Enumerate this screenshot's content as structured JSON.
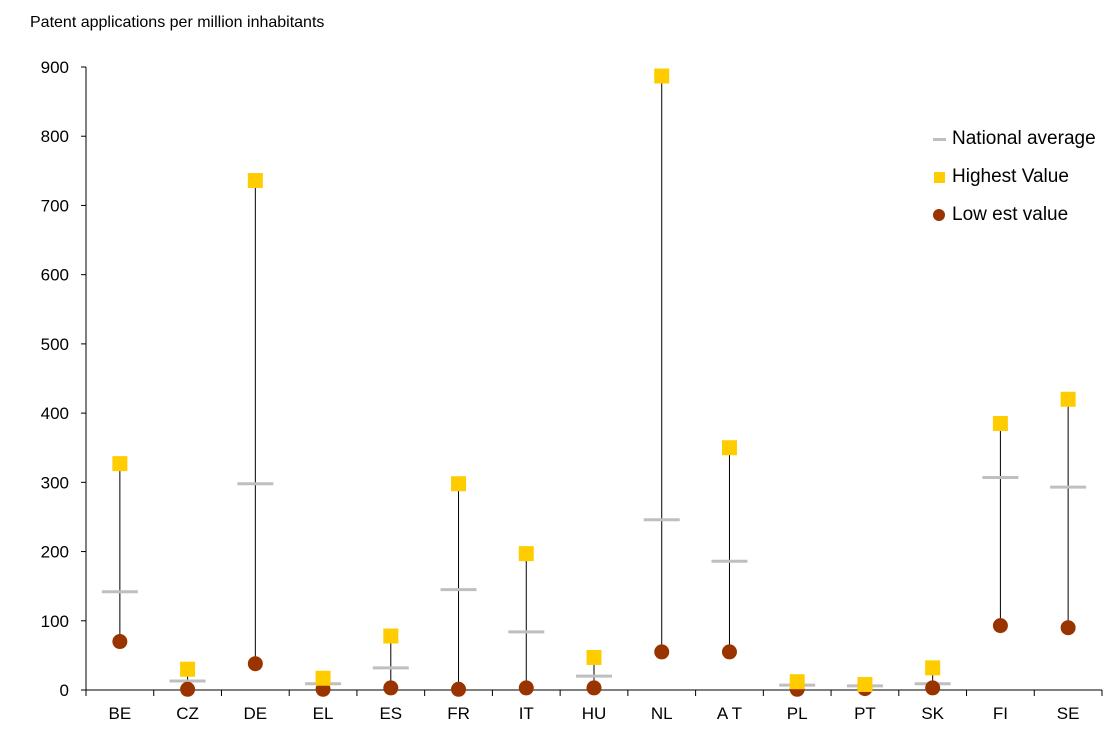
{
  "chart_data": {
    "type": "scatter",
    "title": "",
    "ylabel": "Patent applications per million inhabitants",
    "xlabel": "",
    "ylim": [
      0,
      900
    ],
    "yticks": [
      0,
      100,
      200,
      300,
      400,
      500,
      600,
      700,
      800,
      900
    ],
    "categories": [
      "BE",
      "CZ",
      "DE",
      "EL",
      "ES",
      "FR",
      "IT",
      "HU",
      "NL",
      "A T",
      "PL",
      "PT",
      "SK",
      "FI",
      "SE"
    ],
    "series": [
      {
        "name": "National average",
        "marker": "dash",
        "color": "#bfbfbf",
        "values": [
          142,
          13,
          298,
          9,
          32,
          145,
          84,
          20,
          246,
          186,
          7,
          6,
          9,
          307,
          293
        ]
      },
      {
        "name": "Highest Value",
        "marker": "square",
        "color": "#ffcc00",
        "values": [
          327,
          30,
          736,
          17,
          78,
          298,
          197,
          47,
          887,
          350,
          12,
          8,
          32,
          385,
          420
        ]
      },
      {
        "name": "Low est value",
        "marker": "circle",
        "color": "#993300",
        "values": [
          70,
          1,
          38,
          1,
          3,
          1,
          3,
          3,
          55,
          55,
          1,
          2,
          3,
          93,
          90
        ]
      }
    ],
    "grid": false,
    "legend_position": "top-right"
  }
}
